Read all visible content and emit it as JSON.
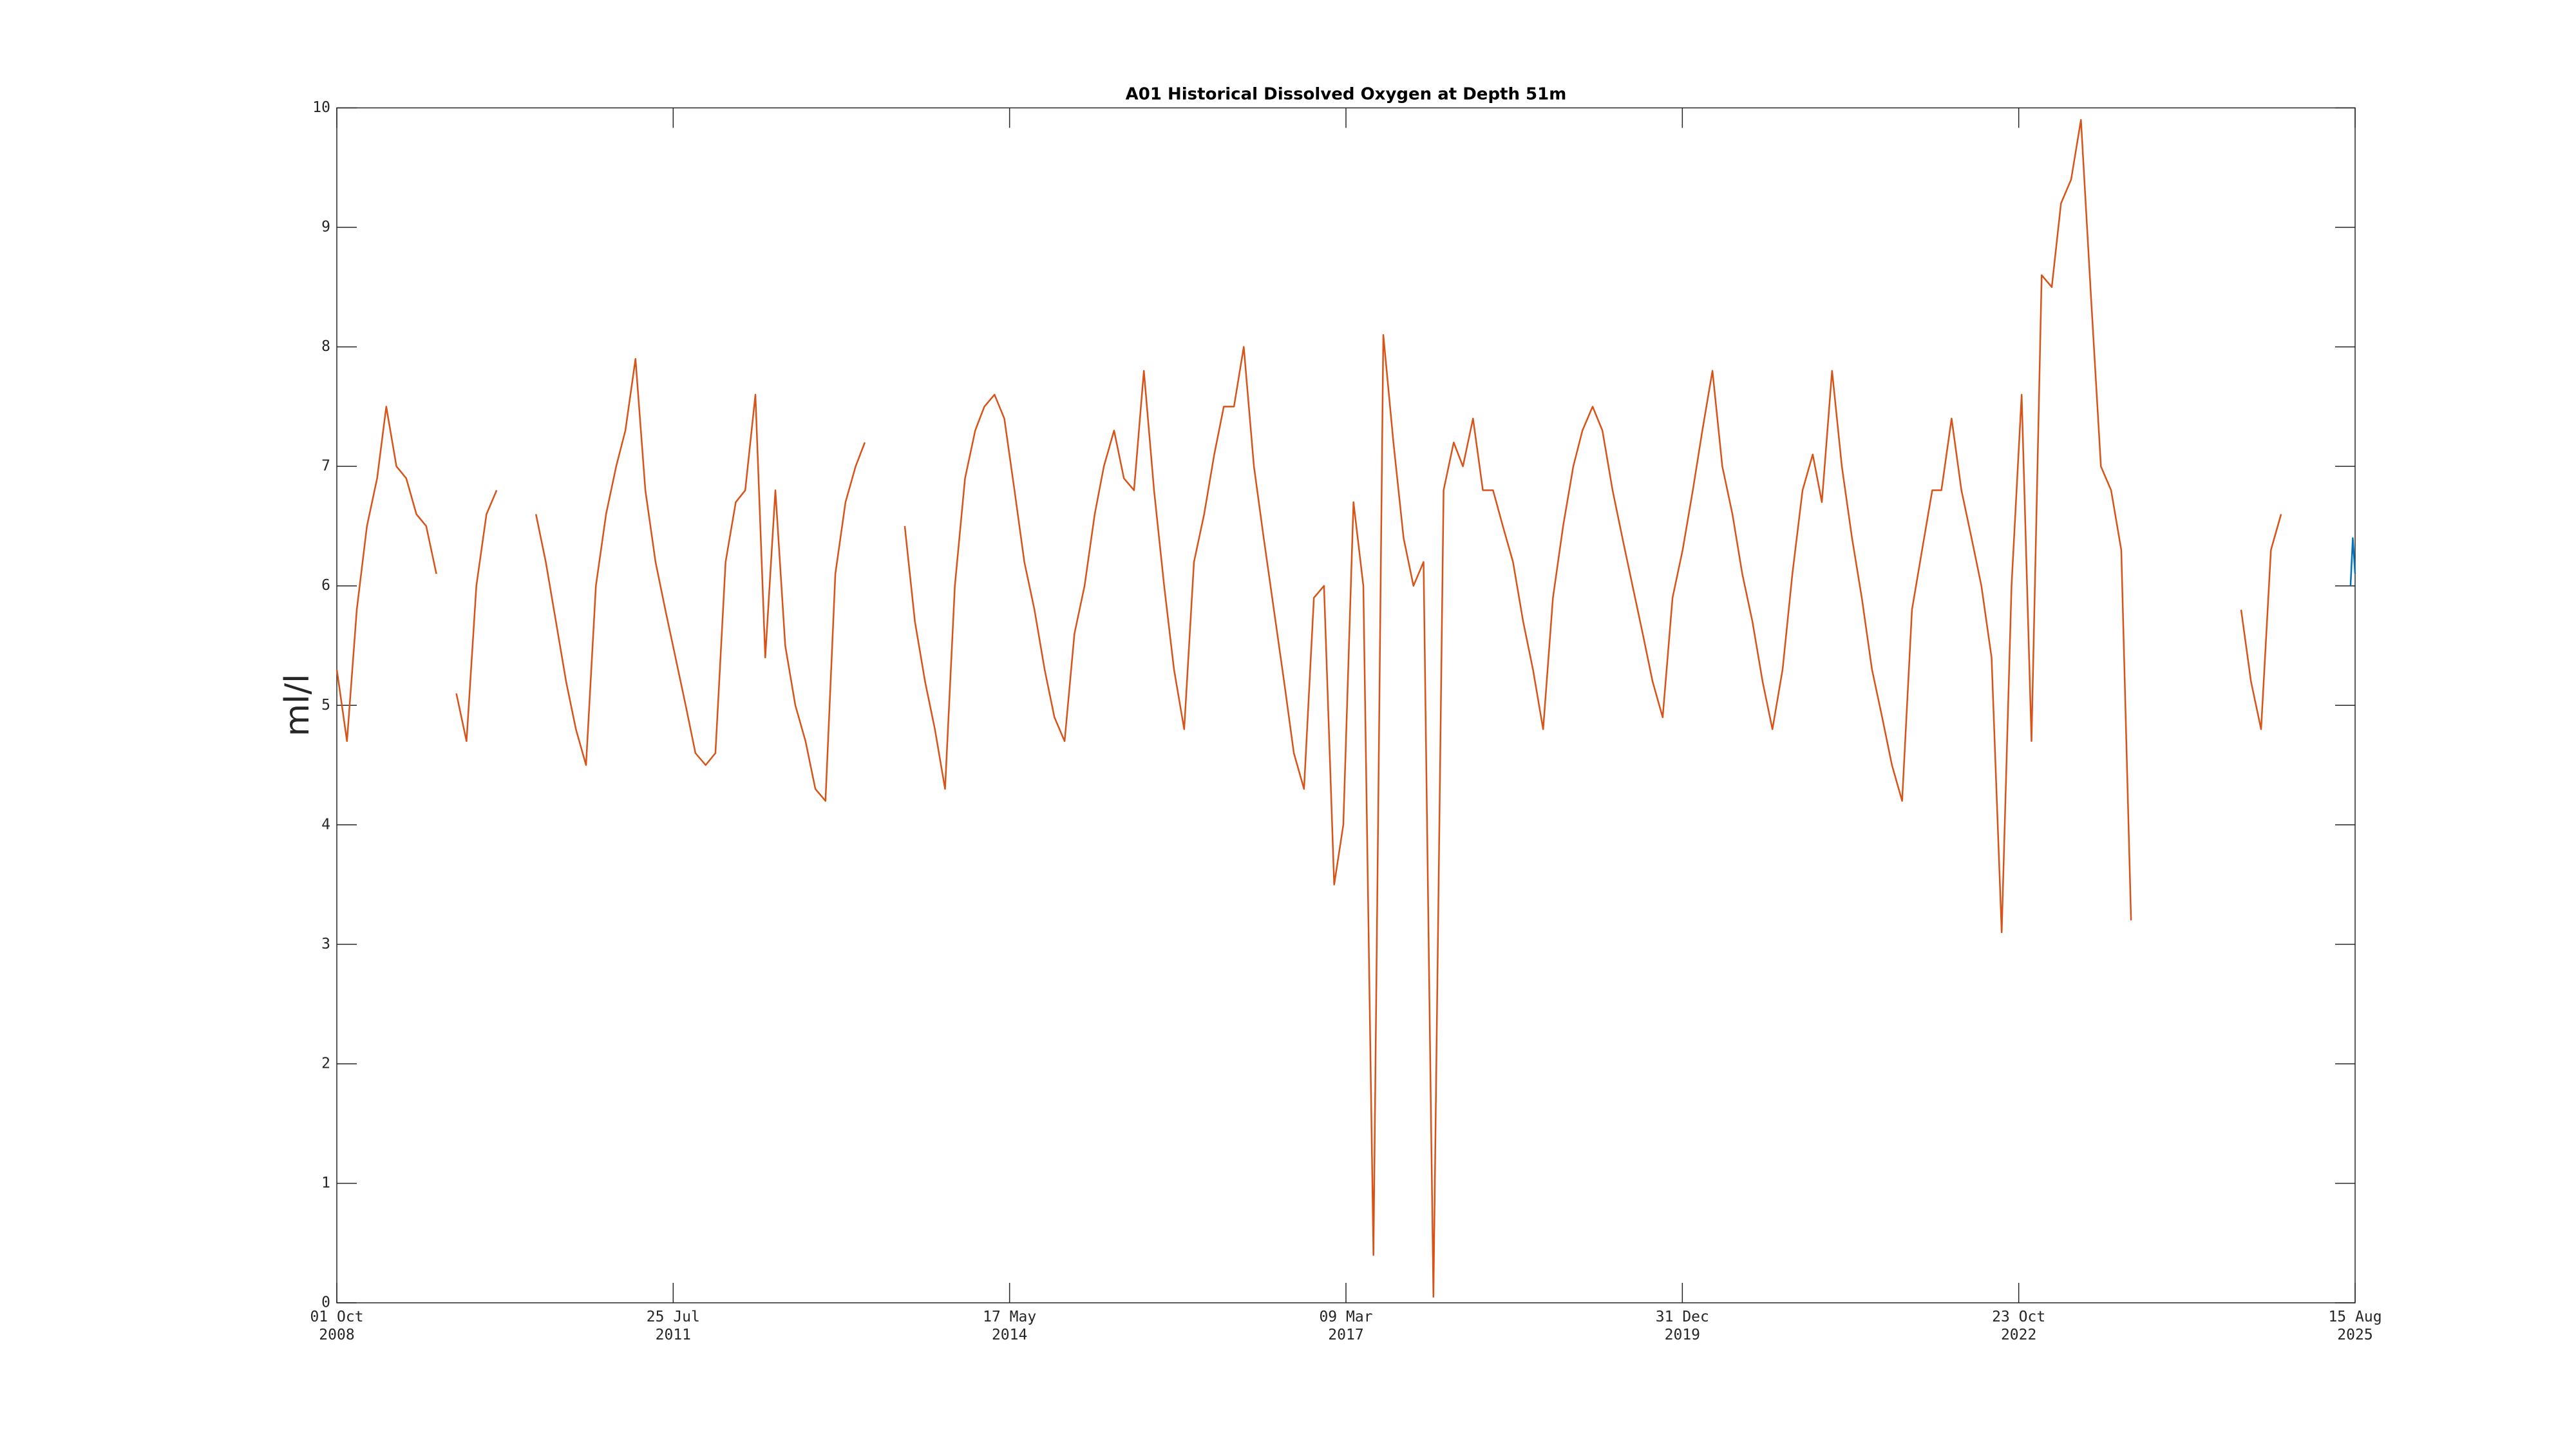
{
  "chart_data": {
    "type": "line",
    "title": "A01 Historical Dissolved Oxygen at Depth 51m",
    "ylabel": "ml/l",
    "xlim": [
      "2008-10-01",
      "2025-08-15"
    ],
    "xticks": [
      {
        "value": "2008-10-01",
        "label": "01 Oct\n2008"
      },
      {
        "value": "2011-07-25",
        "label": "25 Jul\n2011"
      },
      {
        "value": "2014-05-17",
        "label": "17 May\n2014"
      },
      {
        "value": "2017-03-09",
        "label": "09 Mar\n2017"
      },
      {
        "value": "2019-12-31",
        "label": "31 Dec\n2019"
      },
      {
        "value": "2022-10-23",
        "label": "23 Oct\n2022"
      },
      {
        "value": "2025-08-15",
        "label": "15 Aug\n2025"
      }
    ],
    "ylim": [
      0,
      10
    ],
    "yticks": [
      0,
      1,
      2,
      3,
      4,
      5,
      6,
      7,
      8,
      9,
      10
    ],
    "grid": false,
    "series": [
      {
        "color": "#d95319",
        "x": [
          "2008-10",
          "2008-11",
          "2008-12",
          "2009-01",
          "2009-02",
          "2009-03",
          "2009-04",
          "2009-05",
          "2009-06",
          "2009-07",
          "2009-08",
          "2009-09",
          "2009-10",
          "2009-11",
          "2009-12",
          "2010-01",
          "2010-02",
          "2010-03",
          "2010-04",
          "2010-05",
          "2010-06",
          "2010-07",
          "2010-08",
          "2010-09",
          "2010-10",
          "2010-11",
          "2010-12",
          "2011-01",
          "2011-02",
          "2011-03",
          "2011-04",
          "2011-05",
          "2011-06",
          "2011-07",
          "2011-08",
          "2011-09",
          "2011-10",
          "2011-11",
          "2011-12",
          "2012-01",
          "2012-02",
          "2012-03",
          "2012-04",
          "2012-05",
          "2012-06",
          "2012-07",
          "2012-08",
          "2012-09",
          "2012-10",
          "2012-11",
          "2012-12",
          "2013-01",
          "2013-02",
          "2013-03",
          "2013-04",
          "2013-05",
          "2013-06",
          "2013-07",
          "2013-08",
          "2013-09",
          "2013-10",
          "2013-11",
          "2013-12",
          "2014-01",
          "2014-02",
          "2014-03",
          "2014-04",
          "2014-05",
          "2014-06",
          "2014-07",
          "2014-08",
          "2014-09",
          "2014-10",
          "2014-11",
          "2014-12",
          "2015-01",
          "2015-02",
          "2015-03",
          "2015-04",
          "2015-05",
          "2015-06",
          "2015-07",
          "2015-08",
          "2015-09",
          "2015-10",
          "2015-11",
          "2015-12",
          "2016-01",
          "2016-02",
          "2016-03",
          "2016-04",
          "2016-05",
          "2016-06",
          "2016-07",
          "2016-08",
          "2016-09",
          "2016-10",
          "2016-11",
          "2016-12",
          "2017-01",
          "2017-02",
          "2017-03",
          "2017-04",
          "2017-05",
          "2017-06",
          "2017-07",
          "2017-08",
          "2017-09",
          "2017-10",
          "2017-11",
          "2017-12",
          "2018-01",
          "2018-02",
          "2018-03",
          "2018-04",
          "2018-05",
          "2018-06",
          "2018-07",
          "2018-08",
          "2018-09",
          "2018-10",
          "2018-11",
          "2018-12",
          "2019-01",
          "2019-02",
          "2019-03",
          "2019-04",
          "2019-05",
          "2019-06",
          "2019-07",
          "2019-08",
          "2019-09",
          "2019-10",
          "2019-11",
          "2019-12",
          "2020-01",
          "2020-02",
          "2020-03",
          "2020-04",
          "2020-05",
          "2020-06",
          "2020-07",
          "2020-08",
          "2020-09",
          "2020-10",
          "2020-11",
          "2020-12",
          "2021-01",
          "2021-02",
          "2021-03",
          "2021-04",
          "2021-05",
          "2021-06",
          "2021-07",
          "2021-08",
          "2021-09",
          "2021-10",
          "2021-11",
          "2021-12",
          "2022-01",
          "2022-02",
          "2022-03",
          "2022-04",
          "2022-05",
          "2022-06",
          "2022-07",
          "2022-08",
          "2022-09",
          "2022-10",
          "2022-11",
          "2022-12",
          "2023-01",
          "2023-02",
          "2023-03",
          "2023-04",
          "2023-05",
          "2023-06",
          "2023-07",
          "2023-08",
          "2023-09",
          "2023-10",
          "2023-11",
          "2023-12",
          "2024-01",
          "2024-02",
          "2024-03",
          "2024-04",
          "2024-05",
          "2024-06",
          "2024-07",
          "2024-08",
          "2024-09",
          "2024-10",
          "2024-11",
          "2024-12",
          "2025-01"
        ],
        "values": [
          5.3,
          4.7,
          5.8,
          6.5,
          6.9,
          7.5,
          7.0,
          6.9,
          6.6,
          6.5,
          6.1,
          null,
          5.1,
          4.7,
          6.0,
          6.6,
          6.8,
          null,
          null,
          null,
          6.6,
          6.2,
          5.7,
          5.2,
          4.8,
          4.5,
          6.0,
          6.6,
          7.0,
          7.3,
          7.9,
          6.8,
          6.2,
          5.8,
          5.4,
          5.0,
          4.6,
          4.5,
          4.6,
          6.2,
          6.7,
          6.8,
          7.6,
          5.4,
          6.8,
          5.5,
          5.0,
          4.7,
          4.3,
          4.2,
          6.1,
          6.7,
          7.0,
          7.2,
          null,
          null,
          null,
          6.5,
          5.7,
          5.2,
          4.8,
          4.3,
          6.0,
          6.9,
          7.3,
          7.5,
          7.6,
          7.4,
          6.8,
          6.2,
          5.8,
          5.3,
          4.9,
          4.7,
          5.6,
          6.0,
          6.6,
          7.0,
          7.3,
          6.9,
          6.8,
          7.8,
          6.8,
          6.0,
          5.3,
          4.8,
          6.2,
          6.6,
          7.1,
          7.5,
          7.5,
          8.0,
          7.0,
          6.4,
          5.8,
          5.2,
          4.6,
          4.3,
          5.9,
          6.0,
          3.5,
          4.0,
          6.7,
          6.0,
          0.4,
          8.1,
          7.2,
          6.4,
          6.0,
          6.2,
          0.05,
          6.8,
          7.2,
          7.0,
          7.4,
          6.8,
          6.8,
          6.5,
          6.2,
          5.7,
          5.3,
          4.8,
          5.9,
          6.5,
          7.0,
          7.3,
          7.5,
          7.3,
          6.8,
          6.4,
          6.0,
          5.6,
          5.2,
          4.9,
          5.9,
          6.3,
          6.8,
          7.3,
          7.8,
          7.0,
          6.6,
          6.1,
          5.7,
          5.2,
          4.8,
          5.3,
          6.1,
          6.8,
          7.1,
          6.7,
          7.8,
          7.0,
          6.4,
          5.9,
          5.3,
          4.9,
          4.5,
          4.2,
          5.8,
          6.3,
          6.8,
          6.8,
          7.4,
          6.8,
          6.4,
          6.0,
          5.4,
          3.1,
          6.0,
          7.6,
          4.7,
          8.6,
          8.5,
          9.2,
          9.4,
          9.9,
          8.4,
          7.0,
          6.8,
          6.3,
          3.2,
          null,
          null,
          null,
          null,
          null,
          null,
          null,
          null,
          null,
          null,
          5.8,
          5.2,
          4.8,
          6.3,
          6.6
        ]
      },
      {
        "color": "#0072bd",
        "x": [
          "2025-08-01",
          "2025-08-08",
          "2025-08-15"
        ],
        "values": [
          6.0,
          6.4,
          6.1
        ]
      }
    ]
  }
}
